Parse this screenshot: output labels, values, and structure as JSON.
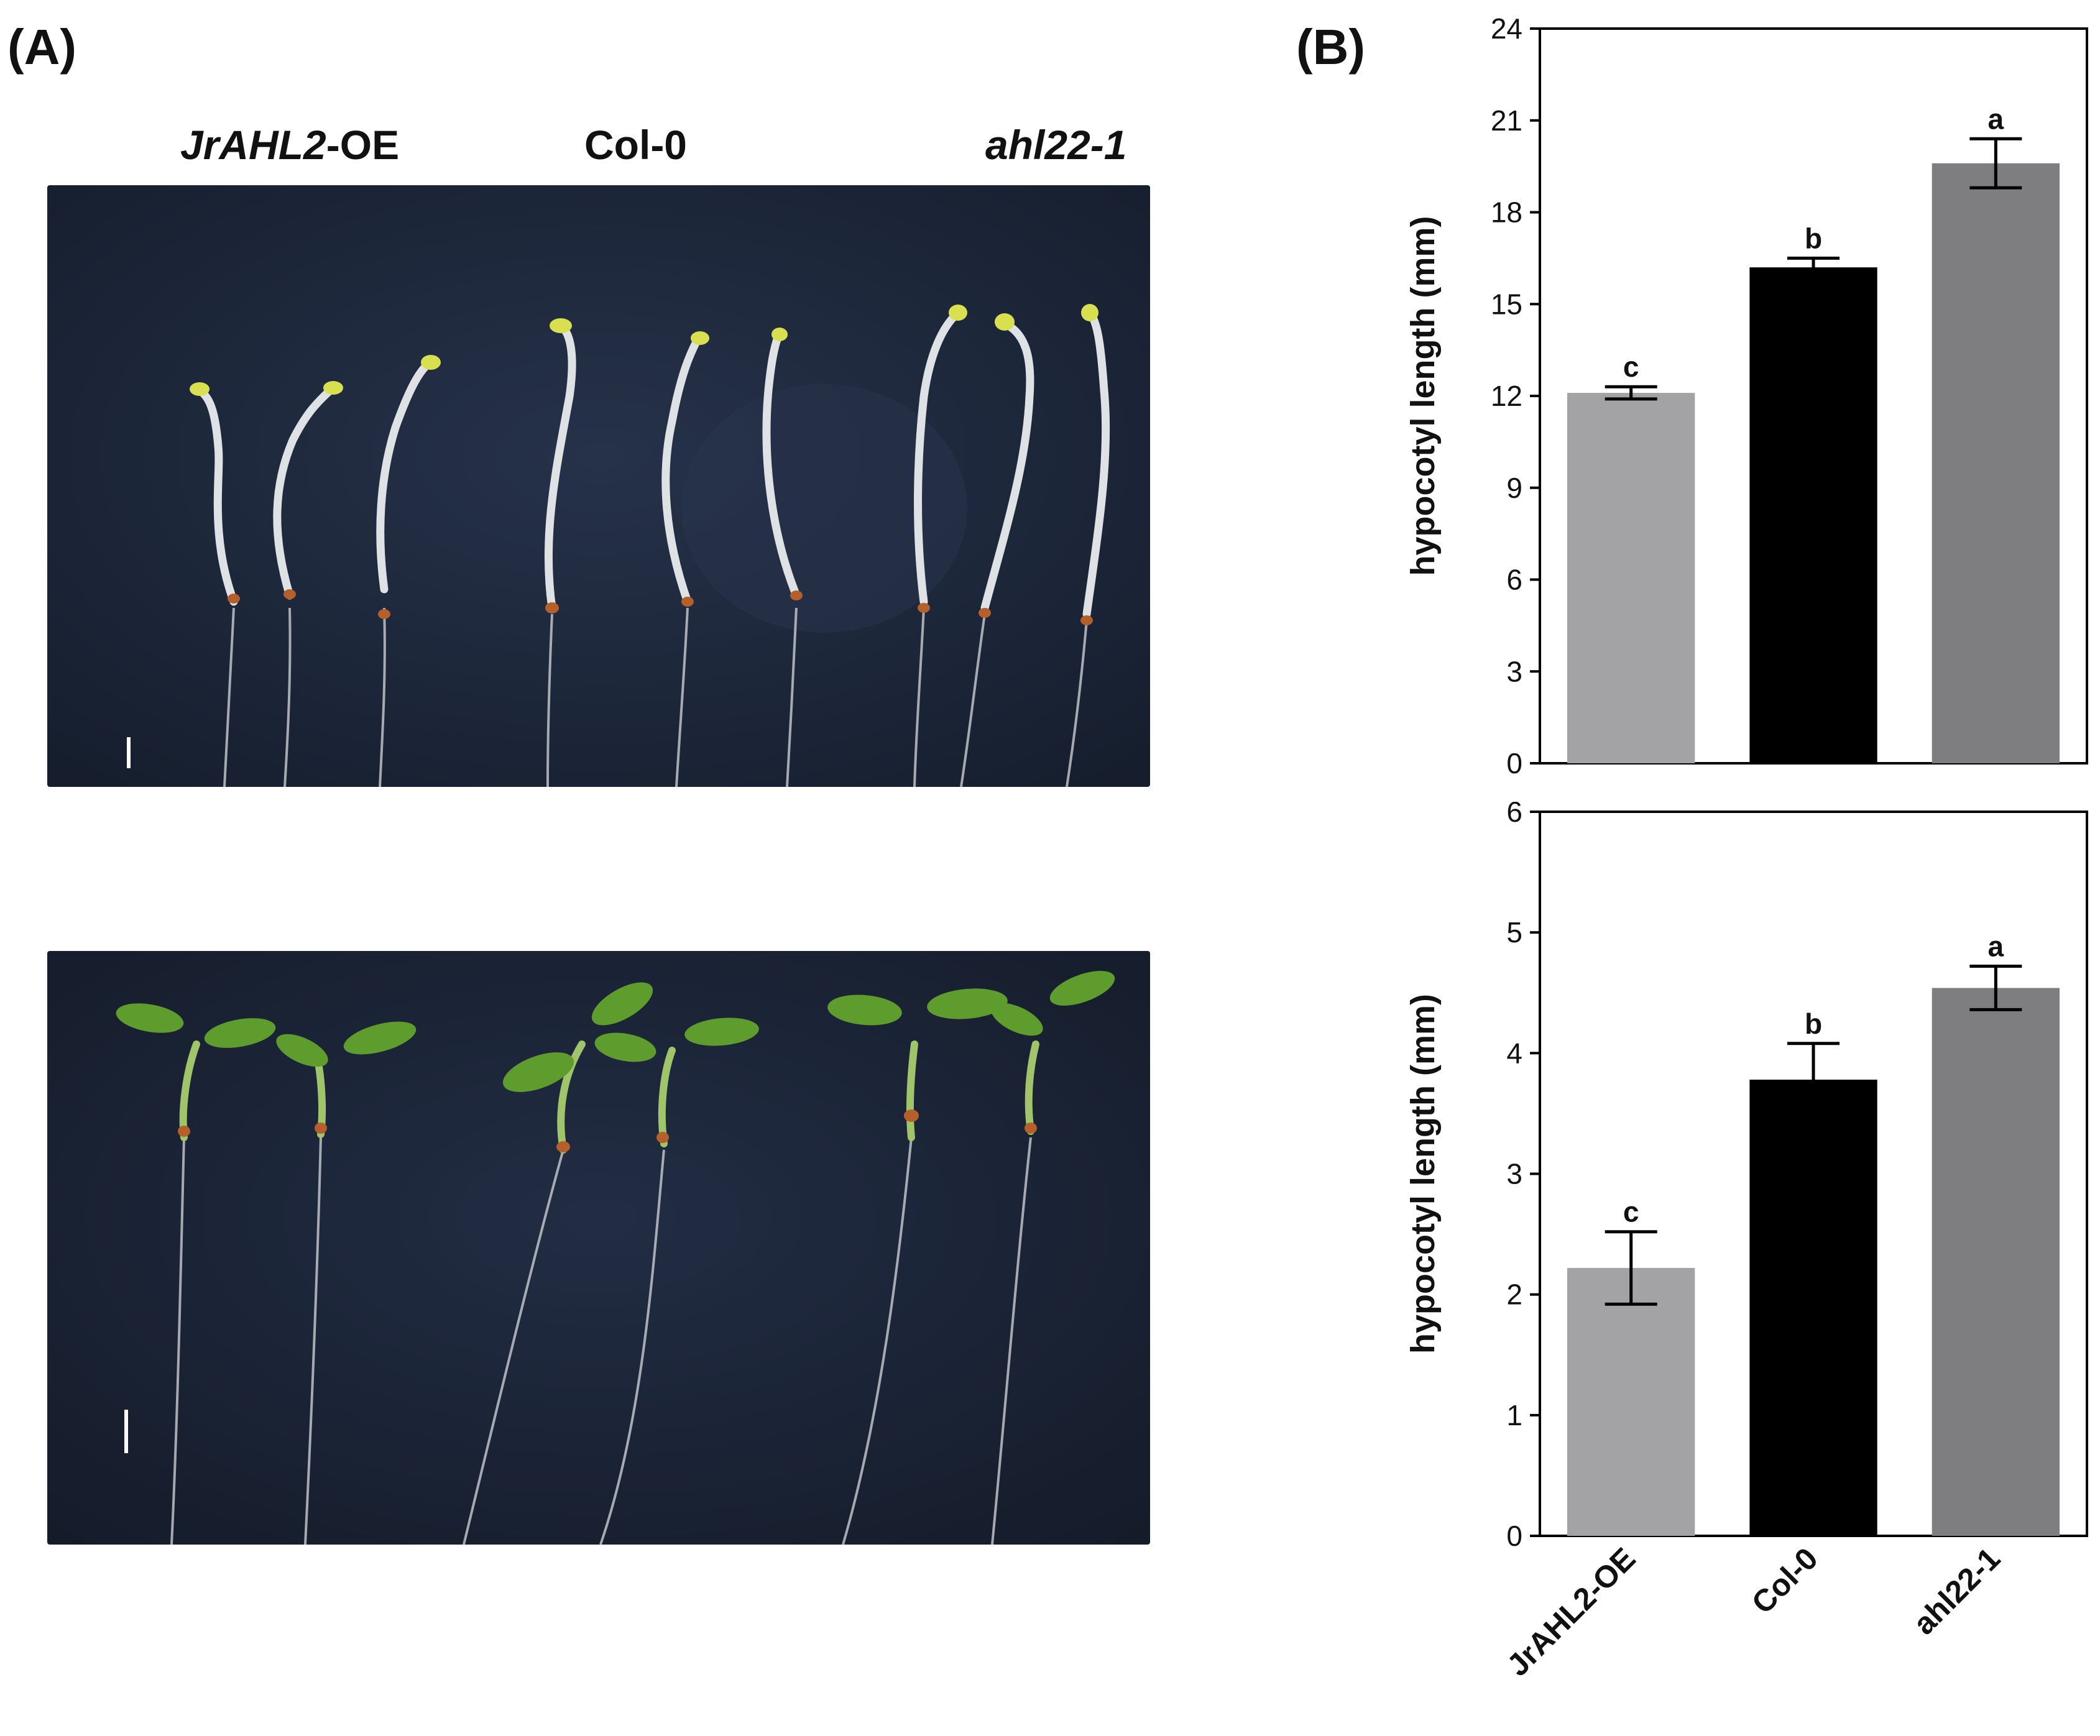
{
  "panel_a": {
    "label": "(A)",
    "genotypes": [
      "JrAHL2",
      "-OE",
      "Col-0",
      "ahl22-1"
    ],
    "photo_background": "#1d2738",
    "hypocotyl_color": "#dfe2e4",
    "cotyledon_yellow": "#d9e050",
    "cotyledon_green": "#5f9c2e",
    "seed_color": "#b5602a"
  },
  "panel_b": {
    "label": "(B)"
  },
  "chart_data": [
    {
      "type": "bar",
      "categories": [
        "JrAHL2-OE",
        "Col-0",
        "ahl22-1"
      ],
      "values": [
        12.1,
        16.2,
        19.6
      ],
      "errors": [
        0.2,
        0.3,
        0.8
      ],
      "significance": [
        "c",
        "b",
        "a"
      ],
      "colors": [
        "#a3a3a6",
        "#000000",
        "#7e7e80"
      ],
      "ylabel": "hypocotyl length (mm)",
      "ylim": [
        0,
        24
      ],
      "yticks": [
        0,
        3,
        6,
        9,
        12,
        15,
        18,
        21,
        24
      ],
      "show_xticklabels": false,
      "grid": false
    },
    {
      "type": "bar",
      "categories": [
        "JrAHL2-OE",
        "Col-0",
        "ahl22-1"
      ],
      "values": [
        2.22,
        3.78,
        4.54
      ],
      "errors": [
        0.3,
        0.3,
        0.18
      ],
      "significance": [
        "c",
        "b",
        "a"
      ],
      "colors": [
        "#a3a3a6",
        "#000000",
        "#7e7e80"
      ],
      "ylabel": "hypocotyl length (mm)",
      "ylim": [
        0,
        6
      ],
      "yticks": [
        0,
        1,
        2,
        3,
        4,
        5,
        6
      ],
      "show_xticklabels": true,
      "grid": false
    }
  ]
}
